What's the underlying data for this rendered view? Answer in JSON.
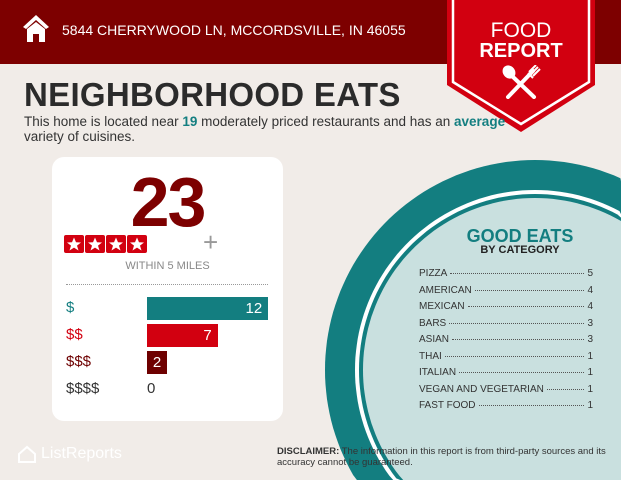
{
  "header": {
    "address": "5844 CHERRYWOOD LN, MCCORDSVILLE, IN 46055",
    "icon": "home-icon"
  },
  "ribbon": {
    "line1": "FOOD",
    "line2": "REPORT",
    "icon": "utensils-icon"
  },
  "main": {
    "title": "NEIGHBORHOOD EATS",
    "sub_pre": "This home is located near ",
    "sub_count": "19",
    "sub_mid": " moderately priced restaurants and has an ",
    "sub_variety": "average",
    "sub_post": " variety of cuisines."
  },
  "card": {
    "count": "23",
    "rating_stars": 4,
    "plus": "+",
    "within": "WITHIN 5 MILES",
    "prices": [
      {
        "label": "$",
        "value": 12,
        "color": "#137e80"
      },
      {
        "label": "$$",
        "value": 7,
        "color": "#d20010"
      },
      {
        "label": "$$$",
        "value": 2,
        "color": "#6e0000"
      },
      {
        "label": "$$$$",
        "value": 0,
        "color": "#333333"
      }
    ]
  },
  "good_eats": {
    "title": "GOOD EATS",
    "subtitle": "BY CATEGORY",
    "categories": [
      {
        "name": "PIZZA",
        "count": "5"
      },
      {
        "name": "AMERICAN",
        "count": "4"
      },
      {
        "name": "MEXICAN",
        "count": "4"
      },
      {
        "name": "BARS",
        "count": "3"
      },
      {
        "name": "ASIAN",
        "count": "3"
      },
      {
        "name": "THAI",
        "count": "1"
      },
      {
        "name": "ITALIAN",
        "count": "1"
      },
      {
        "name": "VEGAN AND VEGETARIAN",
        "count": "1"
      },
      {
        "name": "FAST FOOD",
        "count": "1"
      }
    ]
  },
  "footer": {
    "logo": "ListReports",
    "disclaimer_label": "DISCLAIMER:",
    "disclaimer": " The information in this report is from third-party sources and its accuracy cannot be guaranteed."
  },
  "colors": {
    "header": "#7d0000",
    "ribbon": "#d20010",
    "teal": "#137e80",
    "circle_fill": "#c9e0df",
    "background": "#f1ece8"
  }
}
